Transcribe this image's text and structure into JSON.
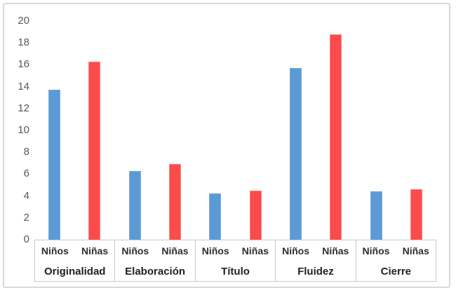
{
  "chart_data": {
    "type": "bar",
    "title": "",
    "xlabel": "",
    "ylabel": "",
    "categories": [
      "Originalidad",
      "Elaboración",
      "Título",
      "Fluidez",
      "Cierre"
    ],
    "series": [
      {
        "name": "Niños",
        "color": "#5B9BD5",
        "edge_color": "#7EA9D8",
        "values": [
          13.7,
          6.3,
          4.2,
          15.7,
          4.4
        ]
      },
      {
        "name": "Niñas",
        "color": "#FB4B4B",
        "edge_color": "#FC8383",
        "values": [
          16.3,
          6.9,
          4.5,
          18.8,
          4.6
        ]
      }
    ],
    "ylim": [
      0,
      20
    ],
    "yticks": [
      0,
      2,
      4,
      6,
      8,
      10,
      12,
      14,
      16,
      18,
      20
    ],
    "grid": false,
    "legend_position": "axis-table",
    "axis_table_note": "Niños / Niñas repeated beneath each category group"
  },
  "style": {
    "frame_border_color": "#D8D8D8",
    "table_border_color": "#C9C9C9",
    "tick_label_color": "#595959",
    "background": "#FFFFFF"
  }
}
